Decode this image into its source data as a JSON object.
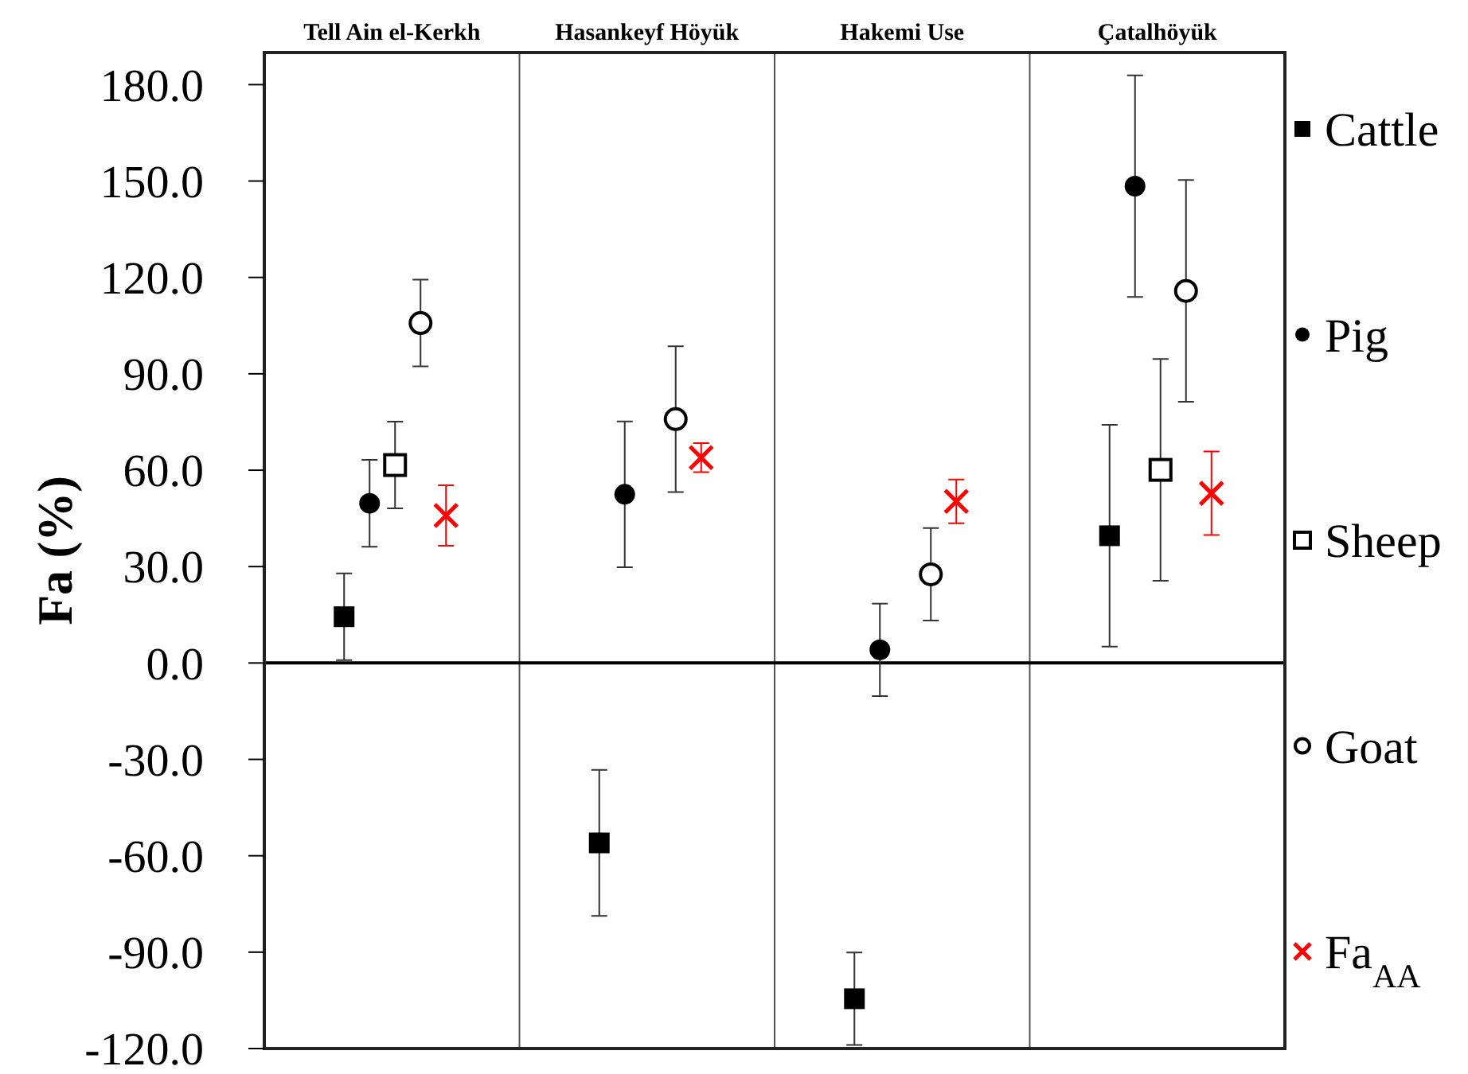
{
  "chart_data": {
    "type": "scatter",
    "ylabel": "Fa (%)",
    "categories": [
      "Tell Ain el-Kerkh",
      "Hasankeyf Höyük",
      "Hakemi Use",
      "Çatalhöyük"
    ],
    "ylim": [
      -120,
      190
    ],
    "yticks": [
      {
        "value": -120,
        "label": "-120.0"
      },
      {
        "value": -90,
        "label": "-90.0"
      },
      {
        "value": -60,
        "label": "-60.0"
      },
      {
        "value": -30,
        "label": "-30.0"
      },
      {
        "value": 0,
        "label": "0.0"
      },
      {
        "value": 30,
        "label": "30.0"
      },
      {
        "value": 60,
        "label": "60.0"
      },
      {
        "value": 90,
        "label": "90.0"
      },
      {
        "value": 120,
        "label": "120.0"
      },
      {
        "value": 150,
        "label": "150.0"
      },
      {
        "value": 180,
        "label": "180.0"
      }
    ],
    "ref_lines": [
      {
        "axis": "y",
        "value": 0,
        "color": "#000000"
      }
    ],
    "legend": "right",
    "grid": false,
    "series": [
      {
        "name": "Cattle",
        "color": "#000000",
        "marker": "square",
        "values": [
          14.4,
          -56,
          -104.5,
          39.6
        ],
        "errors": [
          13.5,
          22.7,
          14.4,
          34.5
        ]
      },
      {
        "name": "Pig",
        "color": "#000000",
        "marker": "circle",
        "values": [
          49.7,
          52.5,
          4.1,
          148.4
        ],
        "errors": [
          13.5,
          22.7,
          14.4,
          34.5
        ]
      },
      {
        "name": "Sheep",
        "color": "#000000",
        "marker": "square",
        "values": [
          61.6,
          null,
          null,
          60.1
        ],
        "errors": [
          13.5,
          null,
          null,
          34.5
        ]
      },
      {
        "name": "Goat",
        "color": "#000000",
        "marker": "circle",
        "values": [
          105.8,
          75.9,
          27.6,
          115.8
        ],
        "errors": [
          13.5,
          22.7,
          14.4,
          34.5
        ]
      },
      {
        "name": "Fa$_{AA}$",
        "color": "#ff0000",
        "marker": "cross",
        "values": [
          45.9,
          63.9,
          50.3,
          52.8
        ],
        "errors": [
          9.4,
          4.5,
          6.8,
          13
        ]
      }
    ]
  }
}
